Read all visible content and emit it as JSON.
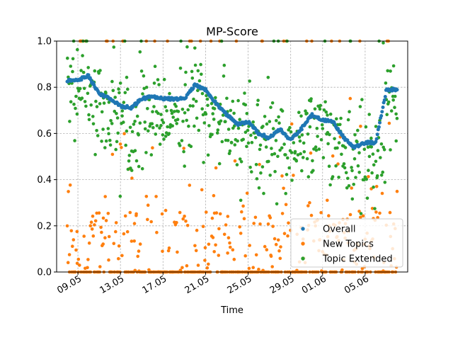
{
  "chart_data": {
    "type": "scatter",
    "title": "MP-Score",
    "xlabel": "Time",
    "ylabel": "",
    "ylim": [
      0,
      1
    ],
    "xlim": [
      "2024-05-07",
      "2024-06-09"
    ],
    "y_ticks": [
      "0.0",
      "0.2",
      "0.4",
      "0.6",
      "0.8",
      "1.0"
    ],
    "x_ticks": [
      {
        "date": "2024-05-09",
        "label": "09.05"
      },
      {
        "date": "2024-05-13",
        "label": "13.05"
      },
      {
        "date": "2024-05-17",
        "label": "17.05"
      },
      {
        "date": "2024-05-21",
        "label": "21.05"
      },
      {
        "date": "2024-05-25",
        "label": "25.05"
      },
      {
        "date": "2024-05-29",
        "label": "29.05"
      },
      {
        "date": "2024-06-01",
        "label": "01.06"
      },
      {
        "date": "2024-06-05",
        "label": "05.06"
      }
    ],
    "x_start": "2024-05-08",
    "x_end": "2024-06-08",
    "grid": true,
    "legend_position": "bottom-right",
    "series": [
      {
        "name": "Overall",
        "color": "#1f77b4",
        "kind": "trend",
        "x": [
          "2024-05-08",
          "2024-05-09",
          "2024-05-10",
          "2024-05-11",
          "2024-05-12",
          "2024-05-13",
          "2024-05-14",
          "2024-05-15",
          "2024-05-16",
          "2024-05-17",
          "2024-05-18",
          "2024-05-19",
          "2024-05-20",
          "2024-05-21",
          "2024-05-22",
          "2024-05-23",
          "2024-05-24",
          "2024-05-25",
          "2024-05-26",
          "2024-05-27",
          "2024-05-28",
          "2024-05-29",
          "2024-05-30",
          "2024-05-31",
          "2024-06-01",
          "2024-06-02",
          "2024-06-03",
          "2024-06-04",
          "2024-06-05",
          "2024-06-06",
          "2024-06-07",
          "2024-06-08"
        ],
        "y": [
          0.83,
          0.83,
          0.85,
          0.77,
          0.75,
          0.72,
          0.71,
          0.75,
          0.76,
          0.75,
          0.75,
          0.75,
          0.81,
          0.79,
          0.73,
          0.68,
          0.64,
          0.65,
          0.6,
          0.58,
          0.62,
          0.57,
          0.62,
          0.68,
          0.66,
          0.65,
          0.58,
          0.54,
          0.56,
          0.56,
          0.79,
          0.79
        ]
      },
      {
        "name": "New Topics",
        "color": "#ff7f0e",
        "kind": "noisy-low",
        "x_range": [
          "2024-05-08",
          "2024-06-08"
        ]
      },
      {
        "name": "Topic Extended",
        "color": "#2ca02c",
        "kind": "noisy-around-overall",
        "x_range": [
          "2024-05-08",
          "2024-06-08"
        ]
      }
    ]
  }
}
